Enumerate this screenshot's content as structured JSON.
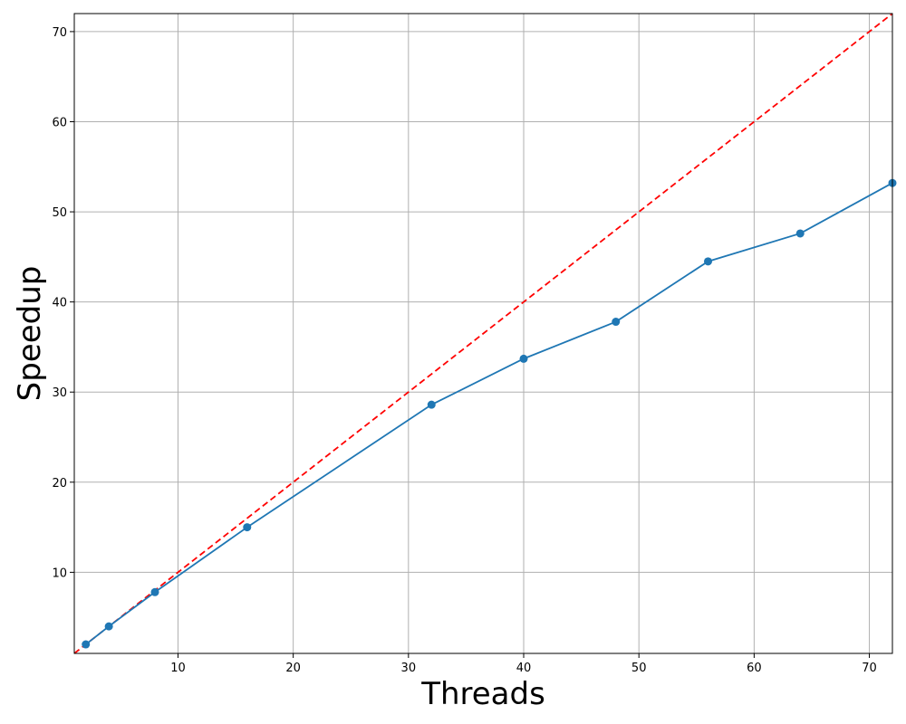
{
  "chart_data": {
    "type": "line",
    "xlabel": "Threads",
    "ylabel": "Speedup",
    "xlim": [
      1,
      72
    ],
    "ylim": [
      1,
      72
    ],
    "x_ticks": [
      10,
      20,
      30,
      40,
      50,
      60,
      70
    ],
    "y_ticks": [
      10,
      20,
      30,
      40,
      50,
      60,
      70
    ],
    "grid": true,
    "series": [
      {
        "x": [
          2,
          4,
          8,
          16,
          32,
          40,
          48,
          56,
          64,
          72
        ],
        "values": [
          2.0,
          4.0,
          7.8,
          15.0,
          28.6,
          33.7,
          37.8,
          44.5,
          47.6,
          53.2
        ],
        "color": "#1f77b4",
        "marker": "circle",
        "line_style": "solid"
      }
    ],
    "reference_line": {
      "x": [
        1,
        72
      ],
      "values": [
        1,
        72
      ],
      "color": "#ff0000",
      "line_style": "dashed"
    }
  }
}
